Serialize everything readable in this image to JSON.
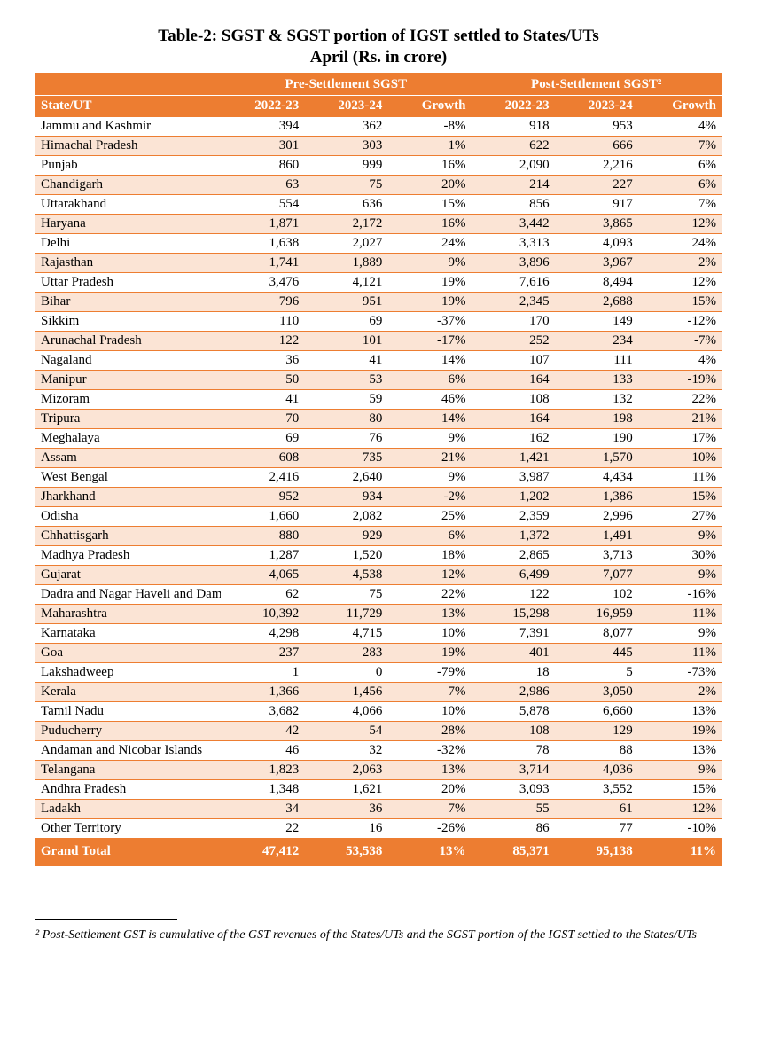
{
  "title_line1": "Table-2: SGST & SGST portion of IGST settled to States/UTs",
  "title_line2": "April (Rs. in crore)",
  "header": {
    "group_pre": "Pre-Settlement SGST",
    "group_post": "Post-Settlement SGST²",
    "state_col": "State/UT",
    "y1": "2022-23",
    "y2": "2023-24",
    "growth": "Growth"
  },
  "rows": [
    {
      "s": "Jammu and Kashmir",
      "p1": "394",
      "p2": "362",
      "pg": "-8%",
      "q1": "918",
      "q2": "953",
      "qg": "4%"
    },
    {
      "s": "Himachal Pradesh",
      "p1": "301",
      "p2": "303",
      "pg": "1%",
      "q1": "622",
      "q2": "666",
      "qg": "7%"
    },
    {
      "s": "Punjab",
      "p1": "860",
      "p2": "999",
      "pg": "16%",
      "q1": "2,090",
      "q2": "2,216",
      "qg": "6%"
    },
    {
      "s": "Chandigarh",
      "p1": "63",
      "p2": "75",
      "pg": "20%",
      "q1": "214",
      "q2": "227",
      "qg": "6%"
    },
    {
      "s": "Uttarakhand",
      "p1": "554",
      "p2": "636",
      "pg": "15%",
      "q1": "856",
      "q2": "917",
      "qg": "7%"
    },
    {
      "s": "Haryana",
      "p1": "1,871",
      "p2": "2,172",
      "pg": "16%",
      "q1": "3,442",
      "q2": "3,865",
      "qg": "12%"
    },
    {
      "s": "Delhi",
      "p1": "1,638",
      "p2": "2,027",
      "pg": "24%",
      "q1": "3,313",
      "q2": "4,093",
      "qg": "24%"
    },
    {
      "s": "Rajasthan",
      "p1": "1,741",
      "p2": "1,889",
      "pg": "9%",
      "q1": "3,896",
      "q2": "3,967",
      "qg": "2%"
    },
    {
      "s": "Uttar Pradesh",
      "p1": "3,476",
      "p2": "4,121",
      "pg": "19%",
      "q1": "7,616",
      "q2": "8,494",
      "qg": "12%"
    },
    {
      "s": "Bihar",
      "p1": "796",
      "p2": "951",
      "pg": "19%",
      "q1": "2,345",
      "q2": "2,688",
      "qg": "15%"
    },
    {
      "s": "Sikkim",
      "p1": "110",
      "p2": "69",
      "pg": "-37%",
      "q1": "170",
      "q2": "149",
      "qg": "-12%"
    },
    {
      "s": "Arunachal Pradesh",
      "p1": "122",
      "p2": "101",
      "pg": "-17%",
      "q1": "252",
      "q2": "234",
      "qg": "-7%"
    },
    {
      "s": "Nagaland",
      "p1": "36",
      "p2": "41",
      "pg": "14%",
      "q1": "107",
      "q2": "111",
      "qg": "4%"
    },
    {
      "s": "Manipur",
      "p1": "50",
      "p2": "53",
      "pg": "6%",
      "q1": "164",
      "q2": "133",
      "qg": "-19%"
    },
    {
      "s": "Mizoram",
      "p1": "41",
      "p2": "59",
      "pg": "46%",
      "q1": "108",
      "q2": "132",
      "qg": "22%"
    },
    {
      "s": "Tripura",
      "p1": "70",
      "p2": "80",
      "pg": "14%",
      "q1": "164",
      "q2": "198",
      "qg": "21%"
    },
    {
      "s": "Meghalaya",
      "p1": "69",
      "p2": "76",
      "pg": "9%",
      "q1": "162",
      "q2": "190",
      "qg": "17%"
    },
    {
      "s": "Assam",
      "p1": "608",
      "p2": "735",
      "pg": "21%",
      "q1": "1,421",
      "q2": "1,570",
      "qg": "10%"
    },
    {
      "s": "West Bengal",
      "p1": "2,416",
      "p2": "2,640",
      "pg": "9%",
      "q1": "3,987",
      "q2": "4,434",
      "qg": "11%"
    },
    {
      "s": "Jharkhand",
      "p1": "952",
      "p2": "934",
      "pg": "-2%",
      "q1": "1,202",
      "q2": "1,386",
      "qg": "15%"
    },
    {
      "s": "Odisha",
      "p1": "1,660",
      "p2": "2,082",
      "pg": "25%",
      "q1": "2,359",
      "q2": "2,996",
      "qg": "27%"
    },
    {
      "s": "Chhattisgarh",
      "p1": "880",
      "p2": "929",
      "pg": "6%",
      "q1": "1,372",
      "q2": "1,491",
      "qg": "9%"
    },
    {
      "s": "Madhya Pradesh",
      "p1": "1,287",
      "p2": "1,520",
      "pg": "18%",
      "q1": "2,865",
      "q2": "3,713",
      "qg": "30%"
    },
    {
      "s": "Gujarat",
      "p1": "4,065",
      "p2": "4,538",
      "pg": "12%",
      "q1": "6,499",
      "q2": "7,077",
      "qg": "9%"
    },
    {
      "s": "Dadra and Nagar Haveli and Daman",
      "p1": "62",
      "p2": "75",
      "pg": "22%",
      "q1": "122",
      "q2": "102",
      "qg": "-16%"
    },
    {
      "s": "Maharashtra",
      "p1": "10,392",
      "p2": "11,729",
      "pg": "13%",
      "q1": "15,298",
      "q2": "16,959",
      "qg": "11%"
    },
    {
      "s": "Karnataka",
      "p1": "4,298",
      "p2": "4,715",
      "pg": "10%",
      "q1": "7,391",
      "q2": "8,077",
      "qg": "9%"
    },
    {
      "s": "Goa",
      "p1": "237",
      "p2": "283",
      "pg": "19%",
      "q1": "401",
      "q2": "445",
      "qg": "11%"
    },
    {
      "s": "Lakshadweep",
      "p1": "1",
      "p2": "0",
      "pg": "-79%",
      "q1": "18",
      "q2": "5",
      "qg": "-73%"
    },
    {
      "s": "Kerala",
      "p1": "1,366",
      "p2": "1,456",
      "pg": "7%",
      "q1": "2,986",
      "q2": "3,050",
      "qg": "2%"
    },
    {
      "s": "Tamil Nadu",
      "p1": "3,682",
      "p2": "4,066",
      "pg": "10%",
      "q1": "5,878",
      "q2": "6,660",
      "qg": "13%"
    },
    {
      "s": "Puducherry",
      "p1": "42",
      "p2": "54",
      "pg": "28%",
      "q1": "108",
      "q2": "129",
      "qg": "19%"
    },
    {
      "s": "Andaman and Nicobar Islands",
      "p1": "46",
      "p2": "32",
      "pg": "-32%",
      "q1": "78",
      "q2": "88",
      "qg": "13%"
    },
    {
      "s": "Telangana",
      "p1": "1,823",
      "p2": "2,063",
      "pg": "13%",
      "q1": "3,714",
      "q2": "4,036",
      "qg": "9%"
    },
    {
      "s": "Andhra Pradesh",
      "p1": "1,348",
      "p2": "1,621",
      "pg": "20%",
      "q1": "3,093",
      "q2": "3,552",
      "qg": "15%"
    },
    {
      "s": "Ladakh",
      "p1": "34",
      "p2": "36",
      "pg": "7%",
      "q1": "55",
      "q2": "61",
      "qg": "12%"
    },
    {
      "s": "Other Territory",
      "p1": "22",
      "p2": "16",
      "pg": "-26%",
      "q1": "86",
      "q2": "77",
      "qg": "-10%"
    }
  ],
  "total": {
    "s": "Grand Total",
    "p1": "47,412",
    "p2": "53,538",
    "pg": "13%",
    "q1": "85,371",
    "q2": "95,138",
    "qg": "11%"
  },
  "footnote": "² Post-Settlement GST is cumulative of the GST revenues of the States/UTs and the SGST portion of the IGST settled to the States/UTs",
  "styling": {
    "header_bg": "#ed7d31",
    "header_text": "#ffffff",
    "row_odd_bg": "#ffffff",
    "row_even_bg": "#fbe4d5",
    "border_color": "#ed7d31",
    "font_family": "Times New Roman",
    "title_fontsize_pt": 14,
    "body_fontsize_pt": 11,
    "footnote_fontsize_pt": 10
  }
}
